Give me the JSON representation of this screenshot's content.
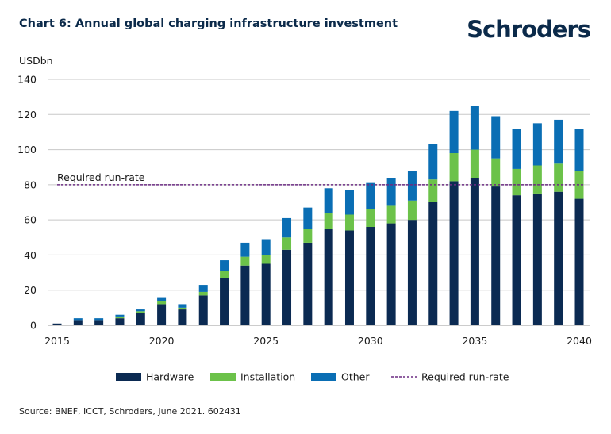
{
  "header": {
    "title": "Chart 6: Annual global charging infrastructure investment",
    "logo_text": "Schroders"
  },
  "footer": {
    "source": "Source: BNEF, ICCT, Schroders, June 2021. 602431"
  },
  "colors": {
    "hardware": "#0b2a52",
    "installation": "#6cc24a",
    "other": "#0a6eb4",
    "runrate": "#6b2c82",
    "grid": "#c8c8c8"
  },
  "chart_data": {
    "type": "bar",
    "stacked": true,
    "ylabel": "USDbn",
    "ylim": [
      0,
      140
    ],
    "yticks": [
      0,
      20,
      40,
      60,
      80,
      100,
      120,
      140
    ],
    "xtick_labels": [
      "2015",
      "2020",
      "2025",
      "2030",
      "2035",
      "2040"
    ],
    "categories": [
      2015,
      2016,
      2017,
      2018,
      2019,
      2020,
      2021,
      2022,
      2023,
      2024,
      2025,
      2026,
      2027,
      2028,
      2029,
      2030,
      2031,
      2032,
      2033,
      2034,
      2035,
      2036,
      2037,
      2038,
      2039,
      2040
    ],
    "series": [
      {
        "name": "Hardware",
        "values": [
          1,
          3,
          3,
          4,
          7,
          12,
          9,
          17,
          27,
          34,
          35,
          43,
          47,
          55,
          54,
          56,
          58,
          60,
          70,
          82,
          84,
          79,
          74,
          75,
          76,
          72
        ]
      },
      {
        "name": "Installation",
        "values": [
          0,
          0,
          0,
          1,
          1,
          2,
          1,
          2,
          4,
          5,
          5,
          7,
          8,
          9,
          9,
          10,
          10,
          11,
          13,
          16,
          16,
          16,
          15,
          16,
          16,
          16
        ]
      },
      {
        "name": "Other",
        "values": [
          0,
          1,
          1,
          1,
          1,
          2,
          2,
          4,
          6,
          8,
          9,
          11,
          12,
          14,
          14,
          15,
          16,
          17,
          20,
          24,
          25,
          24,
          23,
          24,
          25,
          24
        ]
      }
    ],
    "reference_line": {
      "name": "Required run-rate",
      "value": 80,
      "label": "Required run-rate"
    },
    "legend": {
      "placement": "bottom",
      "entries": [
        "Hardware",
        "Installation",
        "Other",
        "Required run-rate"
      ]
    },
    "grid": true
  }
}
